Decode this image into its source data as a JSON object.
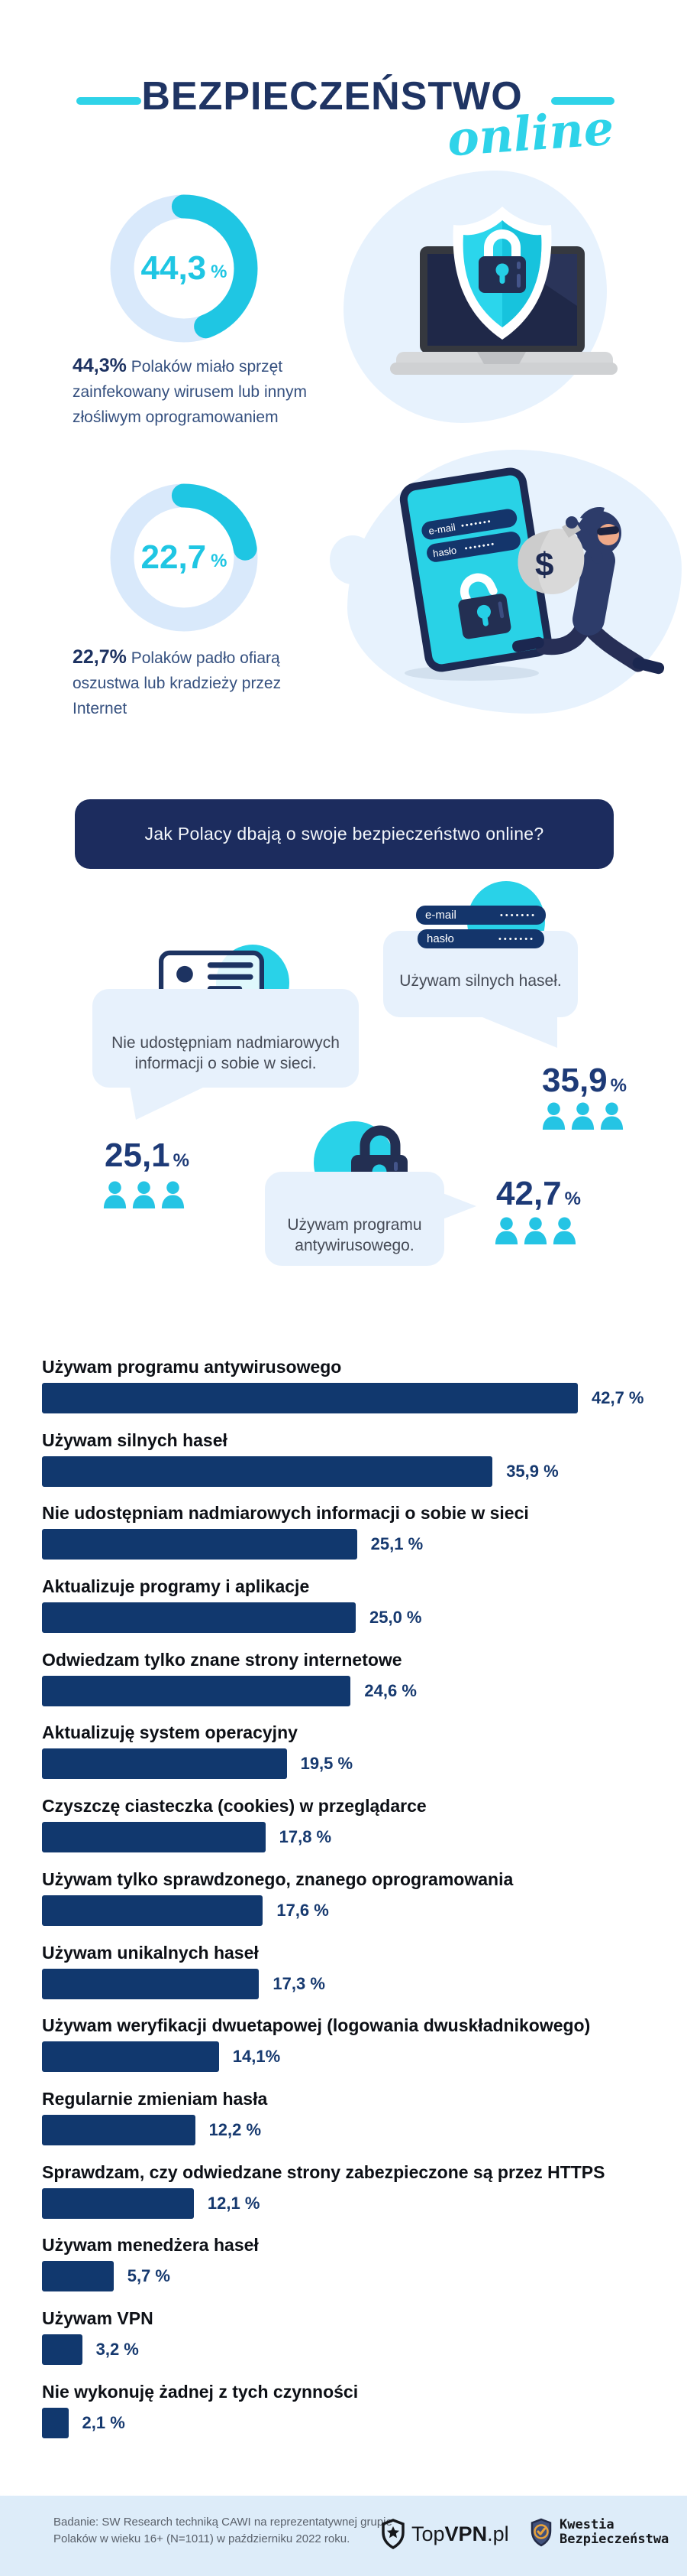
{
  "page": {
    "title_main": "BEZPIECZEŃSTWO",
    "title_script": "online"
  },
  "colors": {
    "navy": "#1c2c5e",
    "cyan": "#29d2e8",
    "bar_navy": "#11386e",
    "donut_track": "#d9e9fb",
    "bubble_bg": "#e7f1fc",
    "footer_bg": "#ddecf9"
  },
  "intro_stats": [
    {
      "number": "44,3",
      "unit": "%",
      "caption_bold": "44,3%",
      "caption_rest": " Polaków miało sprzęt zainfekowany wirusem lub innym złośliwym oprogramowaniem"
    },
    {
      "number": "22,7",
      "unit": "%",
      "caption_bold": "22,7%",
      "caption_rest": " Polaków padło ofiarą oszustwa lub kradzieży przez Internet"
    }
  ],
  "banner": {
    "text": "Jak Polacy dbają o swoje bezpieczeństwo online?"
  },
  "phone_mock": {
    "email_label": "e-mail",
    "password_label": "hasło",
    "dots": "•••••••"
  },
  "bubbles": [
    {
      "text": "Nie udostępniam nadmiarowych informacji o sobie w sieci.",
      "stat_number": "25,1",
      "unit": "%"
    },
    {
      "text": "Używam silnych haseł.",
      "stat_number": "35,9",
      "unit": "%"
    },
    {
      "text": "Używam programu antywirusowego.",
      "stat_number": "42,7",
      "unit": "%"
    }
  ],
  "chart_data": {
    "type": "bar",
    "orientation": "horizontal",
    "unit": "%",
    "xlim": [
      0,
      45
    ],
    "categories": [
      "Używam programu antywirusowego",
      "Używam silnych haseł",
      "Nie udostępniam nadmiarowych informacji o sobie w sieci",
      "Aktualizuje programy i aplikacje",
      "Odwiedzam tylko znane strony internetowe",
      "Aktualizuję system operacyjny",
      "Czyszczę ciasteczka (cookies) w przeglądarce",
      "Używam tylko sprawdzonego, znanego oprogramowania",
      "Używam unikalnych haseł",
      "Używam weryfikacji dwuetapowej (logowania dwuskładnikowego)",
      "Regularnie zmieniam hasła",
      "Sprawdzam, czy odwiedzane strony zabezpieczone są przez HTTPS",
      "Używam menedżera haseł",
      "Używam VPN",
      "Nie wykonuję żadnej z tych czynności"
    ],
    "values": [
      42.7,
      35.9,
      25.1,
      25.0,
      24.6,
      19.5,
      17.8,
      17.6,
      17.3,
      14.1,
      12.2,
      12.1,
      5.7,
      3.2,
      2.1
    ],
    "value_labels": [
      "42,7 %",
      "35,9 %",
      "25,1 %",
      "25,0 %",
      "24,6 %",
      "19,5 %",
      "17,8 %",
      "17,6 %",
      "17,3 %",
      "14,1%",
      "12,2 %",
      "12,1 %",
      "5,7 %",
      "3,2 %",
      "2,1 %"
    ],
    "donuts": [
      {
        "value": 44.3,
        "label": "44,3",
        "unit": "%"
      },
      {
        "value": 22.7,
        "label": "22,7",
        "unit": "%"
      }
    ]
  },
  "footer": {
    "note_line1": "Badanie: SW Research techniką CAWI na reprezentatywnej grupie",
    "note_line2": "Polaków w wieku 16+ (N=1011) w październiku 2022 roku.",
    "topvpn": {
      "pre": "Top",
      "bold": "VPN",
      "suffix": ".pl"
    },
    "kwestia": {
      "line1": "Kwestia",
      "line2": "Bezpieczeństwa"
    }
  }
}
